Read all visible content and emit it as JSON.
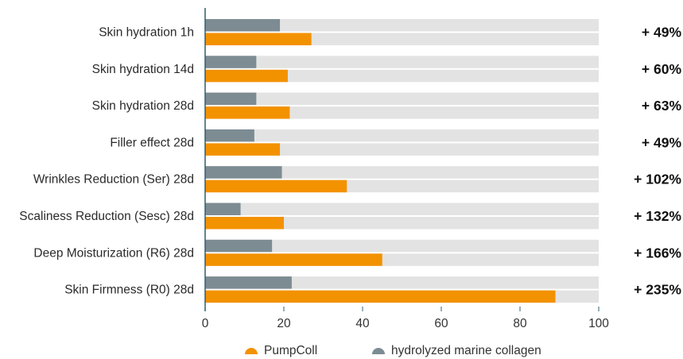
{
  "chart_data": {
    "type": "bar",
    "orientation": "horizontal",
    "categories": [
      "Skin hydration 1h",
      "Skin hydration 14d",
      "Skin hydration 28d",
      "Filler effect 28d",
      "Wrinkles Reduction (Ser) 28d",
      "Scaliness Reduction (Sesc) 28d",
      "Deep Moisturization (R6) 28d",
      "Skin Firmness (R0) 28d"
    ],
    "series": [
      {
        "name": "PumpColl",
        "color": "#f39200",
        "values": [
          27,
          21,
          21.5,
          19,
          36,
          20,
          45,
          89
        ]
      },
      {
        "name": "hydrolyzed marine collagen",
        "color": "#7d8c93",
        "values": [
          19,
          13,
          13,
          12.5,
          19.5,
          9,
          17,
          22
        ]
      }
    ],
    "increase_labels": [
      "+ 49%",
      "+ 60%",
      "+ 63%",
      "+ 49%",
      "+ 102%",
      "+ 132%",
      "+ 166%",
      "+ 235%"
    ],
    "xlim": [
      0,
      100
    ],
    "xticks": [
      0,
      20,
      40,
      60,
      80,
      100
    ],
    "background_bar_color": "#e3e3e3",
    "axis_color": "#2f5f6f",
    "legend_position": "bottom",
    "grid": false
  }
}
